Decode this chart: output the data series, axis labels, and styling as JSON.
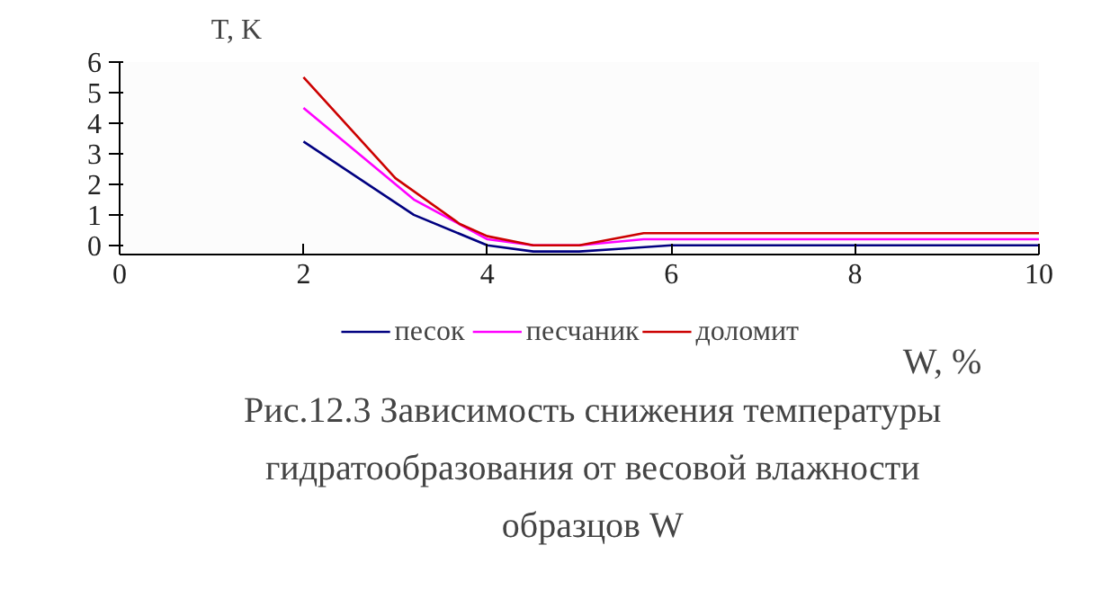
{
  "chart_data": {
    "type": "line",
    "ylabel": "T, K",
    "xlabel": "W, %",
    "xlim": [
      0,
      10
    ],
    "xticks": [
      0,
      2,
      4,
      6,
      8,
      10
    ],
    "ylim": [
      -0.3,
      6
    ],
    "yticks": [
      0,
      1,
      2,
      3,
      4,
      5,
      6
    ],
    "legend": "bottom",
    "grid": false,
    "annotations": [
      "Рис.12.3 Зависимость снижения температуры гидратообразования от весовой влажности образцов W"
    ],
    "series": [
      {
        "name": "песок",
        "color": "#000080",
        "x": [
          2,
          3.2,
          4,
          4.5,
          5,
          5.5,
          6,
          10
        ],
        "values": [
          3.4,
          1.0,
          0,
          -0.2,
          -0.2,
          -0.1,
          0,
          0
        ]
      },
      {
        "name": "песчаник",
        "color": "#ff00ff",
        "x": [
          2,
          3.2,
          4,
          4.5,
          5,
          5.7,
          10
        ],
        "values": [
          4.5,
          1.5,
          0.2,
          0,
          0,
          0.2,
          0.2
        ]
      },
      {
        "name": "доломит",
        "color": "#cc0000",
        "x": [
          2,
          3,
          3.7,
          4,
          4.5,
          5,
          5.7,
          10
        ],
        "values": [
          5.5,
          2.2,
          0.7,
          0.3,
          0,
          0,
          0.4,
          0.4
        ]
      }
    ]
  }
}
